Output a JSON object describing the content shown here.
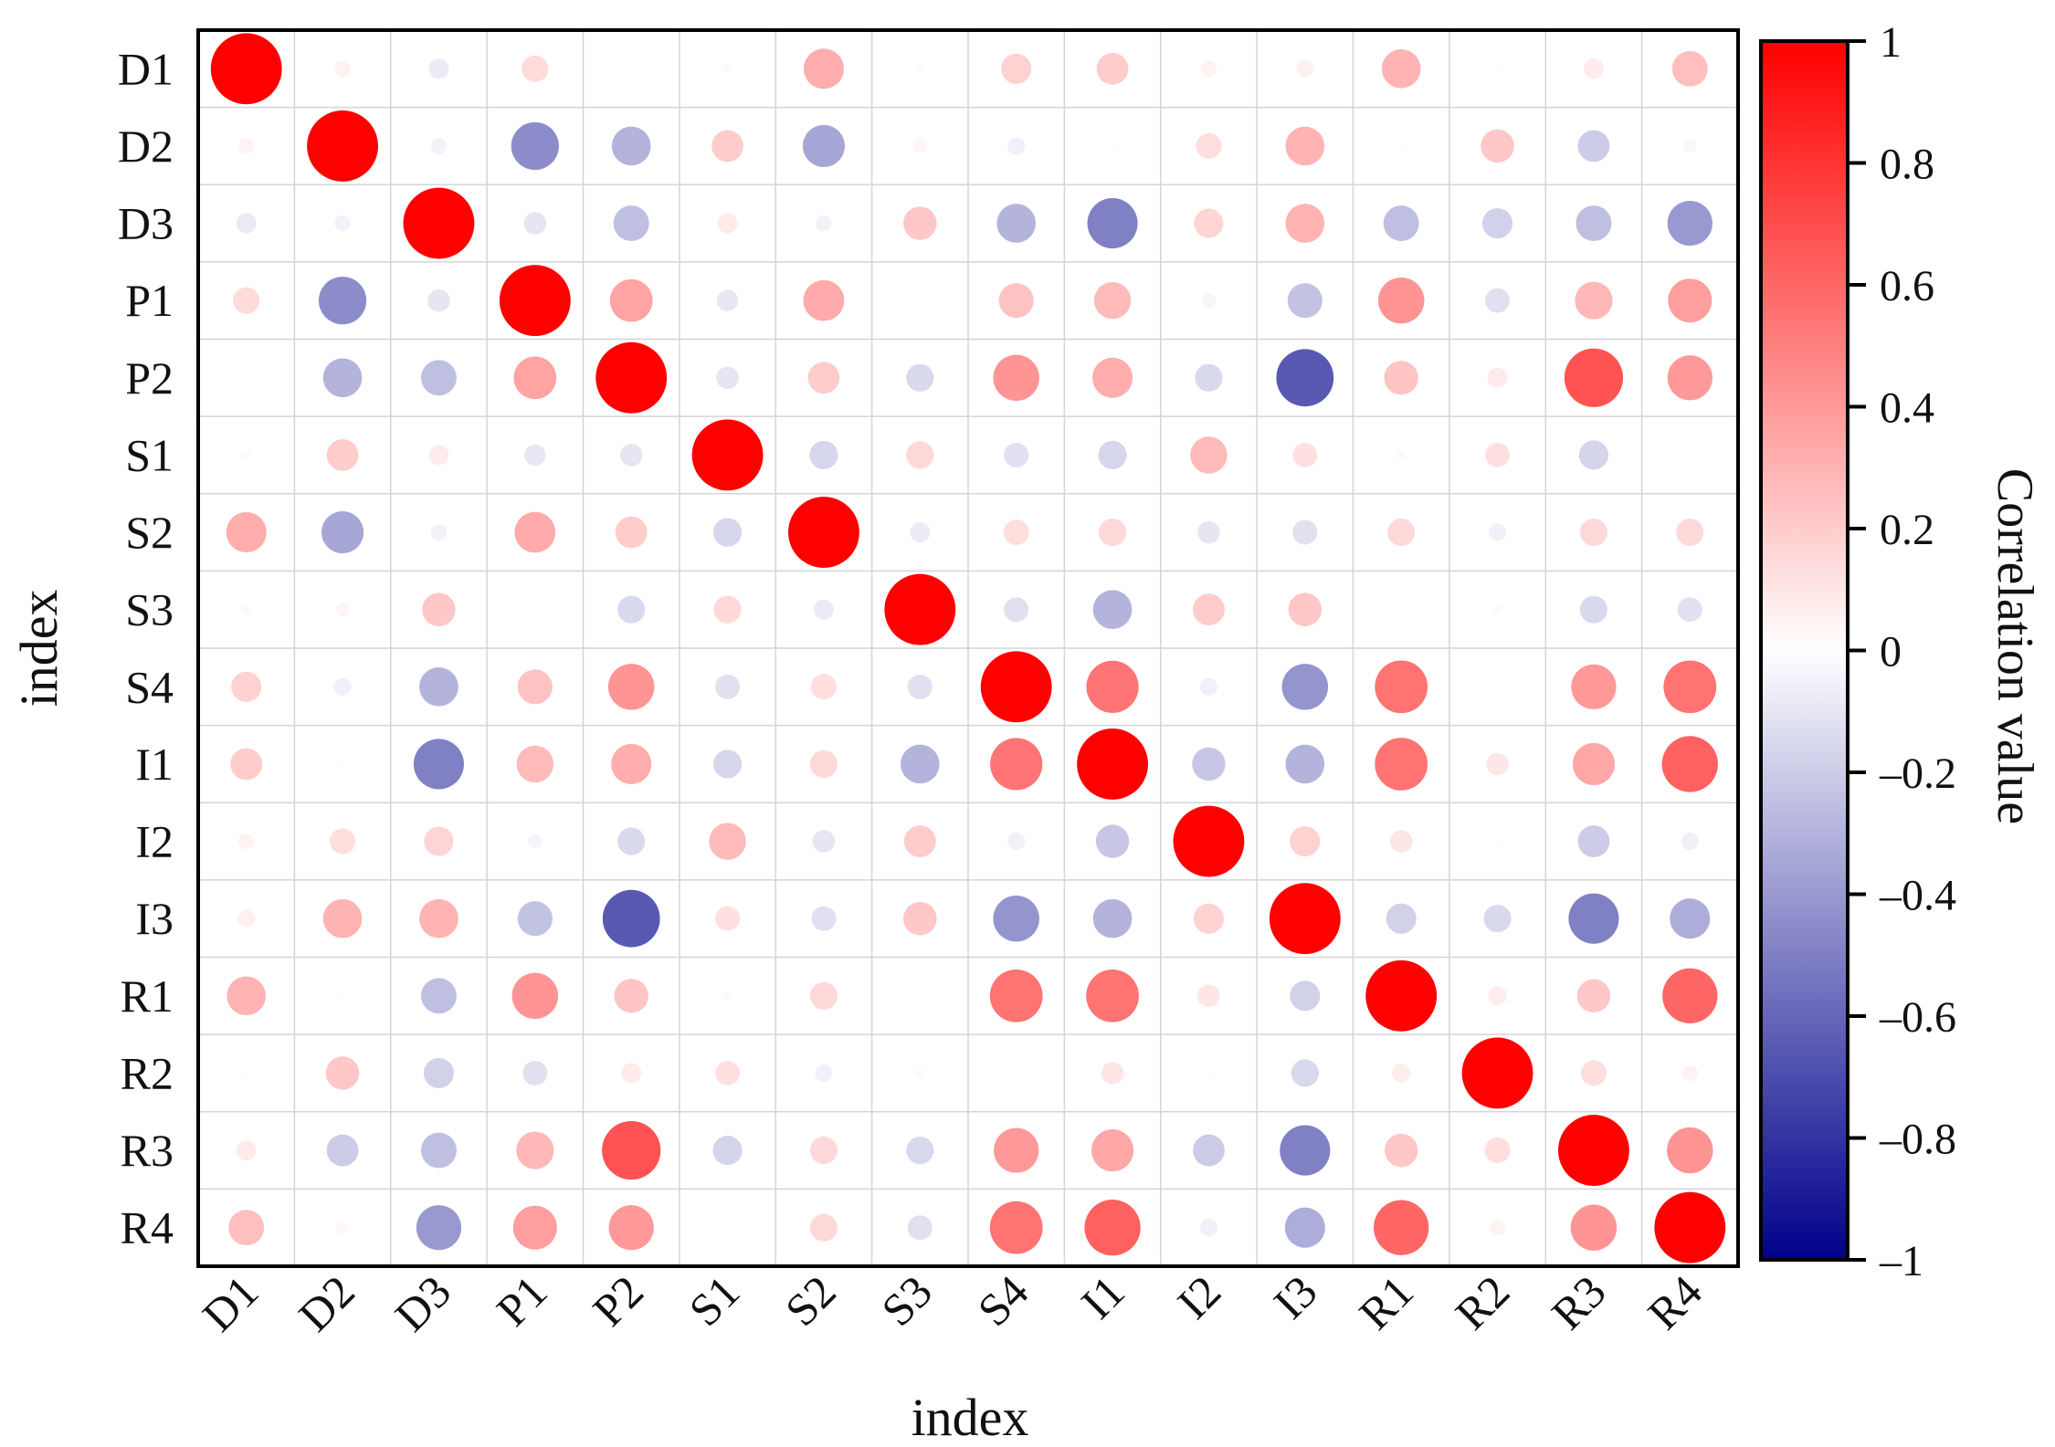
{
  "chart_data": {
    "type": "heatmap",
    "style": "circle-correlation-matrix",
    "xlabel": "index",
    "ylabel": "index",
    "variables": [
      "D1",
      "D2",
      "D3",
      "P1",
      "P2",
      "S1",
      "S2",
      "S3",
      "S4",
      "I1",
      "I2",
      "I3",
      "R1",
      "R2",
      "R3",
      "R4"
    ],
    "matrix": [
      [
        1.0,
        0.05,
        -0.08,
        0.14,
        0.0,
        0.02,
        0.32,
        0.02,
        0.18,
        0.2,
        0.05,
        0.06,
        0.3,
        0.01,
        0.08,
        0.25
      ],
      [
        0.05,
        1.0,
        -0.05,
        -0.45,
        -0.3,
        0.2,
        -0.35,
        0.04,
        -0.06,
        0.01,
        0.13,
        0.3,
        0.01,
        0.22,
        -0.2,
        0.03
      ],
      [
        -0.08,
        -0.05,
        1.0,
        -0.1,
        -0.25,
        0.08,
        -0.05,
        0.22,
        -0.3,
        -0.5,
        0.17,
        0.3,
        -0.25,
        -0.18,
        -0.25,
        -0.4
      ],
      [
        0.14,
        -0.45,
        -0.1,
        1.0,
        0.36,
        -0.09,
        0.33,
        0.0,
        0.24,
        0.27,
        -0.04,
        -0.24,
        0.42,
        -0.12,
        0.28,
        0.38
      ],
      [
        0.0,
        -0.3,
        -0.25,
        0.36,
        1.0,
        -0.1,
        0.2,
        -0.15,
        0.42,
        0.32,
        -0.15,
        -0.65,
        0.23,
        0.08,
        0.68,
        0.4
      ],
      [
        0.02,
        0.2,
        0.08,
        -0.09,
        -0.1,
        1.0,
        -0.16,
        0.15,
        -0.12,
        -0.16,
        0.27,
        0.12,
        0.02,
        0.12,
        -0.17,
        0.0
      ],
      [
        0.32,
        -0.35,
        -0.05,
        0.33,
        0.2,
        -0.16,
        1.0,
        -0.08,
        0.13,
        0.15,
        -0.1,
        -0.12,
        0.15,
        -0.06,
        0.15,
        0.15
      ],
      [
        0.02,
        0.04,
        0.22,
        0.0,
        -0.15,
        0.15,
        -0.08,
        1.0,
        -0.12,
        -0.3,
        0.2,
        0.22,
        0.0,
        0.02,
        -0.15,
        -0.12
      ],
      [
        0.18,
        -0.06,
        -0.3,
        0.24,
        0.42,
        -0.12,
        0.13,
        -0.12,
        1.0,
        0.54,
        -0.06,
        -0.42,
        0.55,
        0.0,
        0.4,
        0.55
      ],
      [
        0.2,
        0.01,
        -0.5,
        0.27,
        0.32,
        -0.16,
        0.15,
        -0.3,
        0.54,
        1.0,
        -0.22,
        -0.3,
        0.55,
        0.1,
        0.35,
        0.62
      ],
      [
        0.05,
        0.13,
        0.17,
        -0.04,
        -0.15,
        0.27,
        -0.1,
        0.2,
        -0.06,
        -0.22,
        1.0,
        0.18,
        0.1,
        0.01,
        -0.2,
        -0.06
      ],
      [
        0.06,
        0.3,
        0.3,
        -0.24,
        -0.65,
        0.12,
        -0.12,
        0.22,
        -0.42,
        -0.3,
        0.18,
        1.0,
        -0.18,
        -0.15,
        -0.5,
        -0.32
      ],
      [
        0.3,
        0.01,
        -0.25,
        0.42,
        0.23,
        0.02,
        0.15,
        0.0,
        0.55,
        0.55,
        0.1,
        -0.18,
        1.0,
        0.07,
        0.22,
        0.6
      ],
      [
        0.01,
        0.22,
        -0.18,
        -0.12,
        0.08,
        0.12,
        -0.06,
        0.02,
        0.0,
        0.1,
        0.01,
        -0.15,
        0.07,
        1.0,
        0.13,
        0.05
      ],
      [
        0.08,
        -0.2,
        -0.25,
        0.28,
        0.68,
        -0.17,
        0.15,
        -0.15,
        0.4,
        0.35,
        -0.2,
        -0.5,
        0.22,
        0.13,
        1.0,
        0.42
      ],
      [
        0.25,
        0.03,
        -0.4,
        0.38,
        0.4,
        0.0,
        0.15,
        -0.12,
        0.55,
        0.62,
        -0.06,
        -0.32,
        0.6,
        0.05,
        0.42,
        1.0
      ]
    ],
    "value_range": [
      -1,
      1
    ],
    "grid": true,
    "colorbar": {
      "title": "Correlation value",
      "position": "right",
      "ticks": [
        1,
        0.8,
        0.6,
        0.4,
        0.2,
        0,
        -0.2,
        -0.4,
        -0.6,
        -0.8,
        -1
      ],
      "tick_labels": [
        "1",
        "0.8",
        "0.6",
        "0.4",
        "0.2",
        "0",
        "–0.2",
        "–0.4",
        "–0.6",
        "–0.8",
        "–1"
      ],
      "colors": {
        "negative": "#00008b",
        "zero": "#ffffff",
        "positive": "#ff0000"
      }
    }
  }
}
